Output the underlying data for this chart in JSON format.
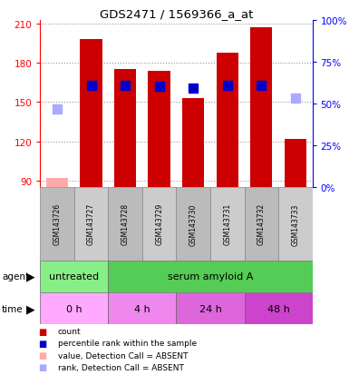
{
  "title": "GDS2471 / 1569366_a_at",
  "samples": [
    "GSM143726",
    "GSM143727",
    "GSM143728",
    "GSM143729",
    "GSM143730",
    "GSM143731",
    "GSM143732",
    "GSM143733"
  ],
  "count_values": [
    92,
    198,
    175,
    174,
    153,
    188,
    207,
    122
  ],
  "count_absent": [
    true,
    false,
    false,
    false,
    false,
    false,
    false,
    false
  ],
  "rank_values": [
    145,
    163,
    163,
    162,
    161,
    163,
    163,
    153
  ],
  "rank_absent": [
    true,
    false,
    false,
    false,
    false,
    false,
    false,
    true
  ],
  "ylim_left": [
    85,
    213
  ],
  "ylim_right": [
    0,
    100
  ],
  "yticks_left": [
    90,
    120,
    150,
    180,
    210
  ],
  "yticks_right": [
    0,
    25,
    50,
    75,
    100
  ],
  "bar_color": "#cc0000",
  "bar_absent_color": "#ffaaaa",
  "rank_color": "#0000cc",
  "rank_absent_color": "#aaaaff",
  "agent_labels": [
    {
      "label": "untreated",
      "span": [
        0,
        2
      ],
      "color": "#88ee88"
    },
    {
      "label": "serum amyloid A",
      "span": [
        2,
        8
      ],
      "color": "#55cc55"
    }
  ],
  "time_labels": [
    {
      "label": "0 h",
      "span": [
        0,
        2
      ],
      "color": "#ffaaff"
    },
    {
      "label": "4 h",
      "span": [
        2,
        4
      ],
      "color": "#ee88ee"
    },
    {
      "label": "24 h",
      "span": [
        4,
        6
      ],
      "color": "#dd66dd"
    },
    {
      "label": "48 h",
      "span": [
        6,
        8
      ],
      "color": "#cc44cc"
    }
  ],
  "legend_items": [
    {
      "label": "count",
      "color": "#cc0000"
    },
    {
      "label": "percentile rank within the sample",
      "color": "#0000cc"
    },
    {
      "label": "value, Detection Call = ABSENT",
      "color": "#ffaaaa"
    },
    {
      "label": "rank, Detection Call = ABSENT",
      "color": "#aaaaff"
    }
  ],
  "bar_width": 0.65,
  "rank_marker_size": 48,
  "grid_color": "#999999",
  "sample_bg_color": "#bbbbbb",
  "sample_bg_color2": "#cccccc"
}
